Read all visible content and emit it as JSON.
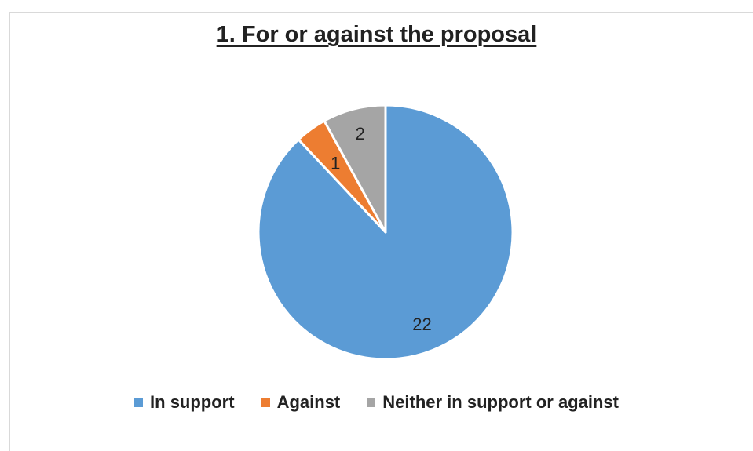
{
  "chart_data": {
    "type": "pie",
    "title": "1. For or against the proposal",
    "categories": [
      "In support",
      "Against",
      "Neither in support or against"
    ],
    "values": [
      22,
      1,
      2
    ],
    "colors": [
      "#5B9BD5",
      "#ED7D31",
      "#A5A5A5"
    ],
    "data_labels": [
      "22",
      "1",
      "2"
    ],
    "legend_position": "bottom",
    "start_angle": "12 o'clock",
    "direction": "clockwise"
  }
}
